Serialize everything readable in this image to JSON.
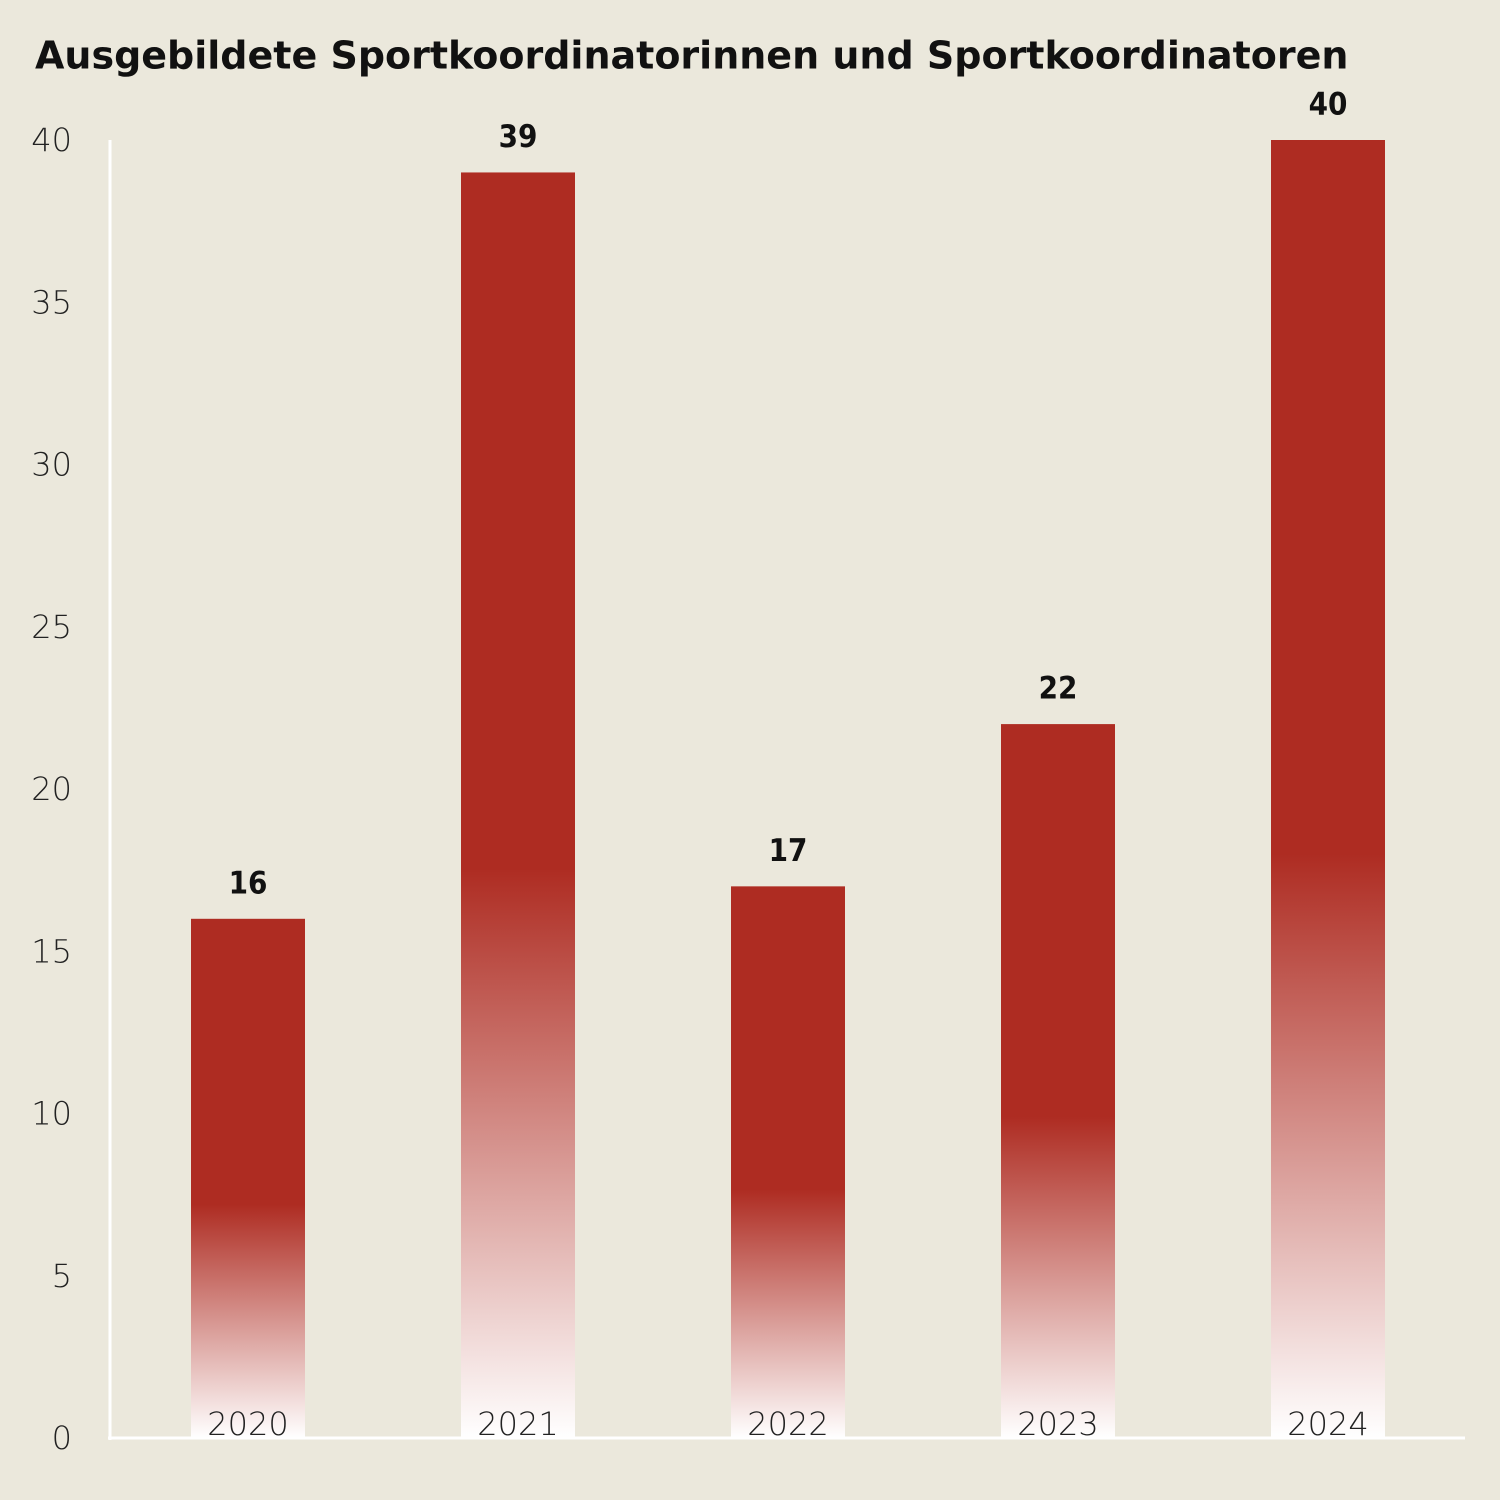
{
  "chart_data": {
    "type": "bar",
    "title": "Ausgebildete Sportkoordinatorinnen und Sportkoordinatoren",
    "categories": [
      "2020",
      "2021",
      "2022",
      "2023",
      "2024"
    ],
    "values": [
      16,
      39,
      17,
      22,
      40
    ],
    "color": "#ae2c22",
    "ylim": [
      0,
      40
    ],
    "yticks": [
      0,
      5,
      10,
      15,
      20,
      25,
      30,
      35,
      40
    ],
    "grid": false
  }
}
